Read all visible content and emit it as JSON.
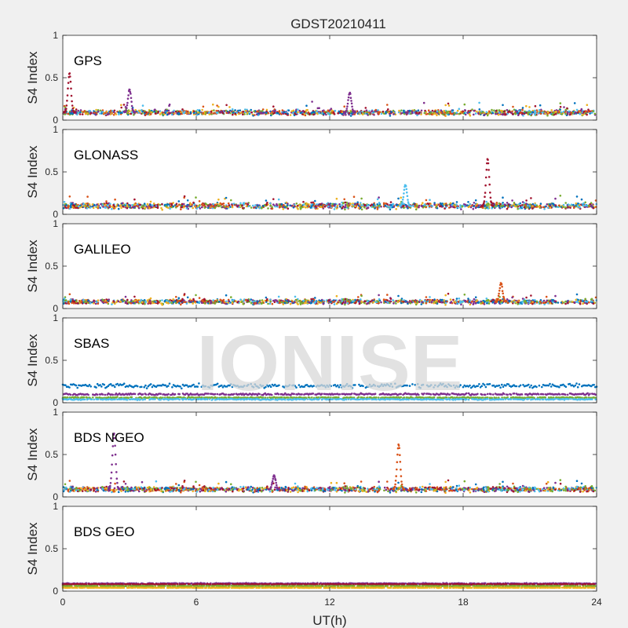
{
  "figure": {
    "title": "GDST20210411",
    "xlabel": "UT(h)",
    "watermark": "IONISE"
  },
  "chart_data": {
    "type": "scatter",
    "title": "GDST20210411",
    "xlabel": "UT(h)",
    "ylabel": "S4 Index",
    "xlim": [
      0,
      24
    ],
    "xticks": [
      "0",
      "6",
      "12",
      "18",
      "24"
    ],
    "ylim": [
      0,
      1
    ],
    "yticks": [
      "0",
      "0.5",
      "1"
    ],
    "grid": false,
    "colors": [
      "#0072BD",
      "#D95319",
      "#EDB120",
      "#7E2F8E",
      "#77AC30",
      "#4DBEEE",
      "#A2142F"
    ],
    "panels": [
      {
        "label": "GPS",
        "baseline": 0.09,
        "noise": 0.045,
        "spikes": [
          {
            "x": 0.3,
            "peak": 0.55,
            "color": "#A2142F"
          },
          {
            "x": 3.0,
            "peak": 0.36,
            "color": "#7E2F8E"
          },
          {
            "x": 12.9,
            "peak": 0.32,
            "color": "#7E2F8E"
          }
        ]
      },
      {
        "label": "GLONASS",
        "baseline": 0.1,
        "noise": 0.05,
        "spikes": [
          {
            "x": 15.4,
            "peak": 0.35,
            "color": "#4DBEEE"
          },
          {
            "x": 19.1,
            "peak": 0.65,
            "color": "#A2142F"
          }
        ]
      },
      {
        "label": "GALILEO",
        "baseline": 0.08,
        "noise": 0.04,
        "spikes": [
          {
            "x": 19.7,
            "peak": 0.3,
            "color": "#D95319"
          }
        ]
      },
      {
        "label": "SBAS",
        "baseline": 0.06,
        "noise": 0.02,
        "bands": [
          {
            "level": 0.2,
            "color": "#0072BD",
            "spread": 0.035
          },
          {
            "level": 0.1,
            "color": "#7E2F8E",
            "spread": 0.015
          },
          {
            "level": 0.06,
            "color": "#77AC30",
            "spread": 0.01
          },
          {
            "level": 0.04,
            "color": "#4DBEEE",
            "spread": 0.01
          }
        ],
        "spikes": []
      },
      {
        "label": "BDS NGEO",
        "baseline": 0.09,
        "noise": 0.045,
        "spikes": [
          {
            "x": 2.3,
            "peak": 0.75,
            "color": "#7E2F8E"
          },
          {
            "x": 9.5,
            "peak": 0.25,
            "color": "#7E2F8E"
          },
          {
            "x": 15.1,
            "peak": 0.62,
            "color": "#D95319"
          }
        ]
      },
      {
        "label": "BDS GEO",
        "baseline": 0.07,
        "noise": 0.008,
        "bands": [
          {
            "level": 0.09,
            "color": "#7E2F8E",
            "spread": 0.008
          },
          {
            "level": 0.08,
            "color": "#A2142F",
            "spread": 0.006
          },
          {
            "level": 0.06,
            "color": "#77AC30",
            "spread": 0.004
          },
          {
            "level": 0.04,
            "color": "#EDB120",
            "spread": 0.004
          }
        ],
        "spikes": []
      }
    ]
  }
}
